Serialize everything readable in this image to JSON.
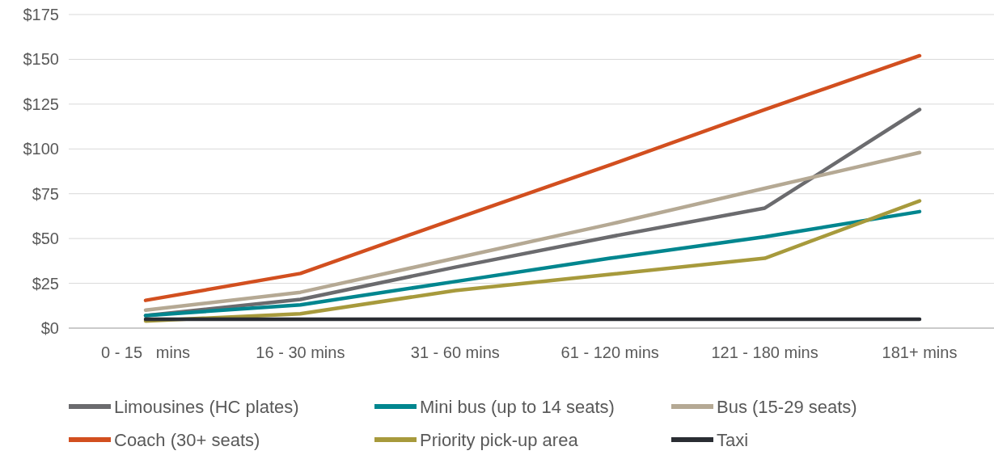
{
  "chart_data": {
    "type": "line",
    "categories": [
      "0 - 15   mins",
      "16 - 30 mins",
      "31 - 60 mins",
      "61 - 120 mins",
      "121 - 180 mins",
      "181+ mins"
    ],
    "ylim": [
      0,
      175
    ],
    "yticks": [
      {
        "value": 0,
        "label": "$0"
      },
      {
        "value": 25,
        "label": "$25"
      },
      {
        "value": 50,
        "label": "$50"
      },
      {
        "value": 75,
        "label": "$75"
      },
      {
        "value": 100,
        "label": "$100"
      },
      {
        "value": 125,
        "label": "$125"
      },
      {
        "value": 150,
        "label": "$150"
      },
      {
        "value": 175,
        "label": "$175"
      }
    ],
    "grid": "y",
    "legend": "bottom",
    "marker": "none",
    "line_style": "solid",
    "series": [
      {
        "name": "Limousines (HC plates)",
        "color": "#6b6b6e",
        "values": [
          7,
          16,
          34,
          51,
          67,
          122
        ]
      },
      {
        "name": "Mini bus (up to 14 seats)",
        "color": "#00868f",
        "values": [
          7,
          13,
          26,
          39,
          51,
          65
        ]
      },
      {
        "name": "Bus (15-29 seats)",
        "color": "#b5a994",
        "values": [
          10,
          20,
          39,
          58,
          78,
          98
        ]
      },
      {
        "name": "Coach (30+ seats)",
        "color": "#d24f1f",
        "values": [
          15.5,
          30.5,
          61,
          91,
          122,
          152
        ]
      },
      {
        "name": "Priority pick-up area",
        "color": "#a79a3c",
        "values": [
          4,
          8,
          21,
          30,
          39,
          71
        ]
      },
      {
        "name": "Taxi",
        "color": "#2a2d33",
        "values": [
          5,
          5,
          5,
          5,
          5,
          5
        ]
      }
    ]
  }
}
